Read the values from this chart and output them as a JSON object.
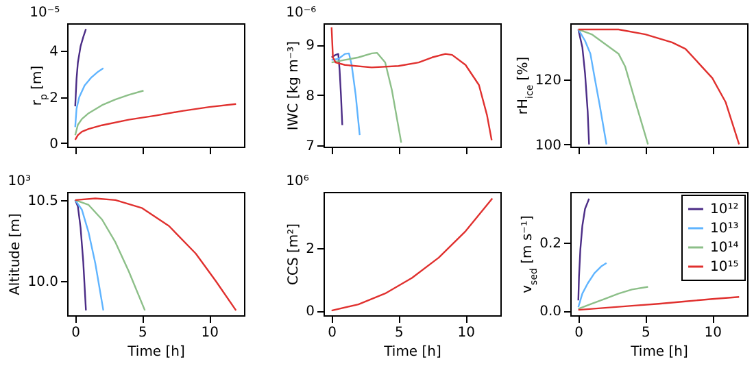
{
  "chart_data": [
    {
      "type": "line",
      "ylabel": "r$_{p}$ [m]",
      "annotations": [
        "10⁻⁵"
      ],
      "tick_labels": "y",
      "xlim": [
        -0.6,
        12.6
      ],
      "xticks": [
        {
          "value": 0,
          "label": null
        },
        {
          "value": 5,
          "label": null
        },
        {
          "value": 10,
          "label": null
        }
      ],
      "ylim": [
        -0.15,
        5.2
      ],
      "yticks": [
        0,
        2,
        4
      ],
      "series": [
        {
          "color": "#4b2c86",
          "x": [
            0,
            0.1,
            0.2,
            0.4,
            0.6,
            0.8
          ],
          "values": [
            1.6,
            2.8,
            3.5,
            4.2,
            4.6,
            4.95
          ]
        },
        {
          "color": "#5fb4ff",
          "x": [
            0,
            0.1,
            0.3,
            0.7,
            1.2,
            1.7,
            2.1
          ],
          "values": [
            0.7,
            1.5,
            2.0,
            2.5,
            2.85,
            3.1,
            3.25
          ]
        },
        {
          "color": "#8cbf88",
          "x": [
            0,
            0.2,
            0.5,
            1,
            2,
            3,
            4,
            5.1
          ],
          "values": [
            0.35,
            0.8,
            1.05,
            1.3,
            1.65,
            1.9,
            2.1,
            2.28
          ]
        },
        {
          "color": "#e0302e",
          "x": [
            0,
            0.2,
            0.5,
            1,
            2,
            4,
            6,
            8,
            10,
            12
          ],
          "values": [
            0.15,
            0.35,
            0.5,
            0.62,
            0.78,
            1.02,
            1.2,
            1.4,
            1.57,
            1.7
          ]
        }
      ]
    },
    {
      "type": "line",
      "ylabel": "IWC [kg m⁻³]",
      "annotations": [
        "10⁻⁶"
      ],
      "tick_labels": "y",
      "xlim": [
        -0.6,
        12.6
      ],
      "xticks": [
        {
          "value": 0,
          "label": null
        },
        {
          "value": 5,
          "label": null
        },
        {
          "value": 10,
          "label": null
        }
      ],
      "ylim": [
        6.97,
        9.43
      ],
      "yticks": [
        7,
        8,
        9
      ],
      "series": [
        {
          "color": "#4b2c86",
          "x": [
            0,
            0.3,
            0.5,
            0.6,
            0.7,
            0.8
          ],
          "values": [
            8.75,
            8.8,
            8.82,
            8.5,
            8.0,
            7.4
          ]
        },
        {
          "color": "#5fb4ff",
          "x": [
            0,
            0.5,
            1,
            1.3,
            1.5,
            1.8,
            2.1
          ],
          "values": [
            8.7,
            8.72,
            8.82,
            8.83,
            8.6,
            8.0,
            7.2
          ]
        },
        {
          "color": "#8cbf88",
          "x": [
            0,
            1,
            2,
            3,
            3.4,
            4,
            4.5,
            5.2
          ],
          "values": [
            8.65,
            8.7,
            8.75,
            8.83,
            8.84,
            8.65,
            8.1,
            7.05
          ]
        },
        {
          "color": "#e0302e",
          "x": [
            0,
            0.1,
            0.3,
            1,
            3,
            5,
            6.5,
            7.5,
            8.5,
            9,
            10,
            11,
            11.6,
            11.95
          ],
          "values": [
            9.35,
            8.75,
            8.65,
            8.6,
            8.55,
            8.58,
            8.65,
            8.75,
            8.82,
            8.8,
            8.6,
            8.2,
            7.6,
            7.1
          ]
        }
      ]
    },
    {
      "type": "line",
      "ylabel": "rH$_{ice}$ [%]",
      "tick_labels": "y",
      "xlim": [
        -0.6,
        12.6
      ],
      "xticks": [
        {
          "value": 0,
          "label": null
        },
        {
          "value": 5,
          "label": null
        },
        {
          "value": 10,
          "label": null
        }
      ],
      "ylim": [
        99.3,
        137.4
      ],
      "yticks": [
        100,
        120
      ],
      "series": [
        {
          "color": "#4b2c86",
          "x": [
            0,
            0.3,
            0.5,
            0.7,
            0.8
          ],
          "values": [
            135.5,
            130,
            122,
            110,
            100
          ]
        },
        {
          "color": "#5fb4ff",
          "x": [
            0,
            0.5,
            0.9,
            1.2,
            1.6,
            2.1
          ],
          "values": [
            135.5,
            132,
            128,
            121,
            112,
            100
          ]
        },
        {
          "color": "#8cbf88",
          "x": [
            0,
            1,
            2,
            3,
            3.5,
            4.2,
            5.2
          ],
          "values": [
            135.5,
            134,
            131,
            128,
            124,
            114,
            100
          ]
        },
        {
          "color": "#e0302e",
          "x": [
            0,
            3,
            5,
            7,
            8,
            9,
            10,
            11,
            12
          ],
          "values": [
            135.5,
            135.5,
            134,
            131.5,
            129.5,
            125,
            120.5,
            113,
            100
          ]
        }
      ]
    },
    {
      "type": "line",
      "xlabel": "Time [h]",
      "ylabel": "Altitude [m]",
      "annotations": [
        "10³"
      ],
      "xlim": [
        -0.6,
        12.6
      ],
      "xticks": [
        0,
        5,
        10
      ],
      "ylim": [
        9.79,
        10.55
      ],
      "yticks": [
        {
          "value": 10,
          "label": "10.0"
        },
        10.5
      ],
      "series": [
        {
          "color": "#4b2c86",
          "x": [
            0,
            0.2,
            0.4,
            0.6,
            0.8
          ],
          "values": [
            10.5,
            10.46,
            10.33,
            10.12,
            9.82
          ]
        },
        {
          "color": "#5fb4ff",
          "x": [
            0,
            0.5,
            1,
            1.5,
            2.1
          ],
          "values": [
            10.5,
            10.44,
            10.3,
            10.11,
            9.82
          ]
        },
        {
          "color": "#8cbf88",
          "x": [
            0,
            1,
            2,
            3,
            4,
            5.2
          ],
          "values": [
            10.5,
            10.47,
            10.38,
            10.24,
            10.06,
            9.82
          ]
        },
        {
          "color": "#e0302e",
          "x": [
            0,
            1.5,
            3,
            5,
            7,
            9,
            10.5,
            12
          ],
          "values": [
            10.5,
            10.51,
            10.5,
            10.45,
            10.34,
            10.17,
            10.0,
            9.82
          ]
        }
      ]
    },
    {
      "type": "line",
      "xlabel": "Time [h]",
      "ylabel": "CCS [m²]",
      "annotations": [
        "10⁶"
      ],
      "xlim": [
        -0.6,
        12.6
      ],
      "xticks": [
        0,
        5,
        10
      ],
      "ylim": [
        -0.15,
        3.81
      ],
      "yticks": [
        0,
        2
      ],
      "series": [
        {
          "color": "#e0302e",
          "x": [
            0,
            2,
            4,
            6,
            8,
            10,
            12
          ],
          "values": [
            0,
            0.2,
            0.55,
            1.05,
            1.7,
            2.55,
            3.6
          ]
        }
      ]
    },
    {
      "type": "line",
      "xlabel": "Time [h]",
      "ylabel": "v$_{sed}$ [m s⁻¹]",
      "legend": "top right",
      "xlim": [
        -0.6,
        12.6
      ],
      "xticks": [
        0,
        5,
        10
      ],
      "ylim": [
        -0.014,
        0.35
      ],
      "yticks": [
        {
          "value": 0,
          "label": "0.0"
        },
        0.2
      ],
      "series": [
        {
          "name": "10¹²",
          "color": "#4b2c86",
          "x": [
            0,
            0.05,
            0.15,
            0.3,
            0.5,
            0.8
          ],
          "values": [
            0.03,
            0.1,
            0.18,
            0.25,
            0.3,
            0.33
          ]
        },
        {
          "name": "10¹³",
          "color": "#5fb4ff",
          "x": [
            0,
            0.3,
            0.7,
            1.2,
            1.7,
            2.1
          ],
          "values": [
            0.01,
            0.05,
            0.08,
            0.11,
            0.13,
            0.14
          ]
        },
        {
          "name": "10¹⁴",
          "color": "#8cbf88",
          "x": [
            0,
            1,
            2,
            3,
            4,
            5.2
          ],
          "values": [
            0.005,
            0.02,
            0.035,
            0.05,
            0.062,
            0.07
          ]
        },
        {
          "name": "10¹⁵",
          "color": "#e0302e",
          "x": [
            0,
            2,
            4,
            6,
            8,
            10,
            12
          ],
          "values": [
            0.002,
            0.008,
            0.014,
            0.02,
            0.027,
            0.034,
            0.04
          ]
        }
      ]
    }
  ]
}
